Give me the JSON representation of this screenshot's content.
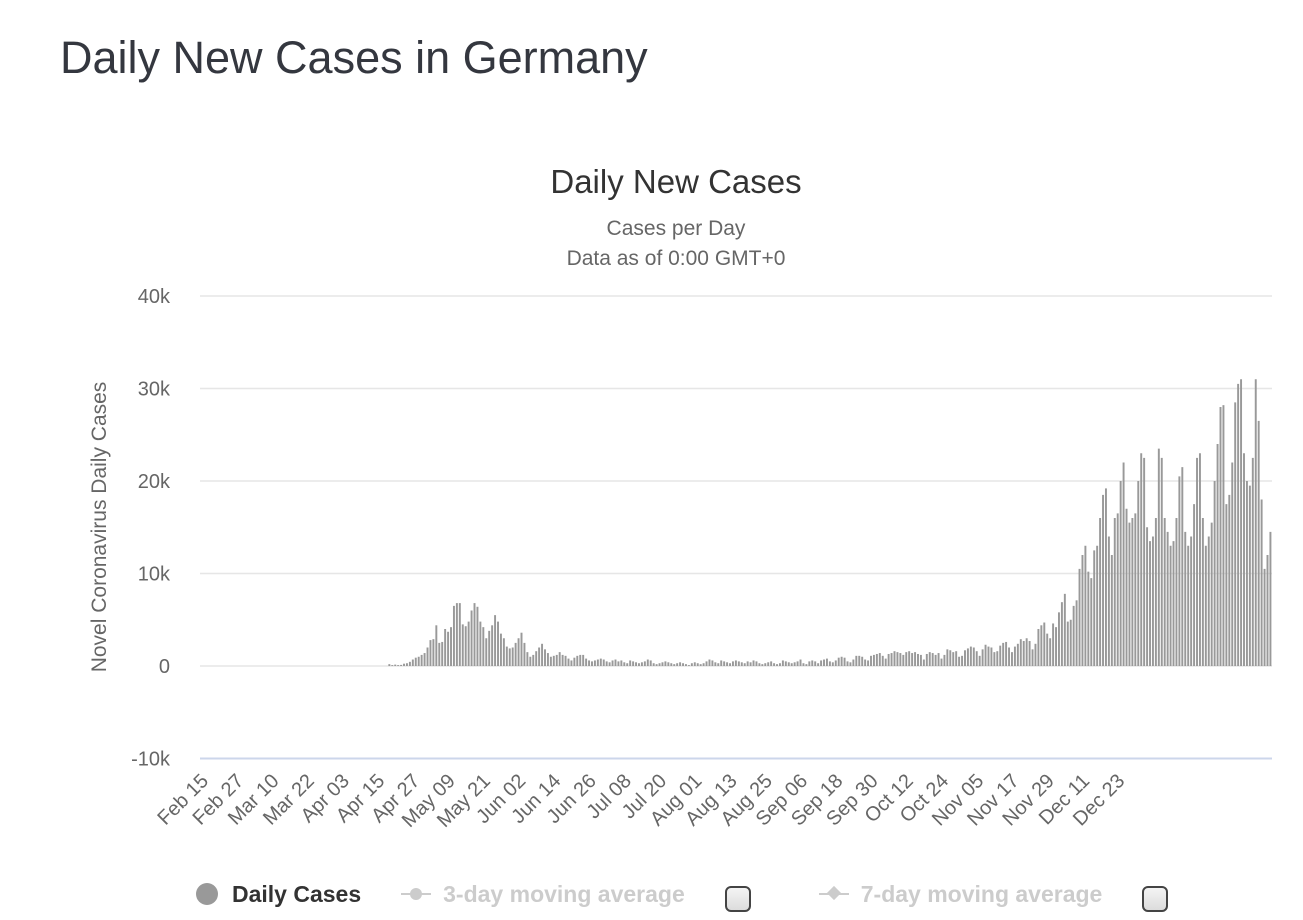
{
  "page": {
    "title": "Daily New Cases in Germany"
  },
  "legend": {
    "daily": "Daily Cases",
    "ma3": "3-day moving average",
    "ma7": "7-day moving average",
    "colors": {
      "active": "#333333",
      "inactive": "#cccccc",
      "bar": "#999999"
    }
  },
  "chart_data": {
    "type": "bar",
    "title": "Daily New Cases",
    "subtitle": "Cases per Day",
    "subtitle2": "Data as of 0:00 GMT+0",
    "ylabel": "Novel Coronavirus Daily Cases",
    "xlabel": "",
    "ylim": [
      -10000,
      40000
    ],
    "yticks": [
      40000,
      30000,
      20000,
      10000,
      0,
      -10000
    ],
    "ytick_labels": [
      "40k",
      "30k",
      "20k",
      "10k",
      "0",
      "-10k"
    ],
    "grid": true,
    "legend_position": "bottom",
    "start_date": "Feb 15",
    "xtick_labels": [
      "Feb 15",
      "Feb 27",
      "Mar 10",
      "Mar 22",
      "Apr 03",
      "Apr 15",
      "Apr 27",
      "May 09",
      "May 21",
      "Jun 02",
      "Jun 14",
      "Jun 26",
      "Jul 08",
      "Jul 20",
      "Aug 01",
      "Aug 13",
      "Aug 25",
      "Sep 06",
      "Sep 18",
      "Sep 30",
      "Oct 12",
      "Oct 24",
      "Nov 05",
      "Nov 17",
      "Nov 29",
      "Dec 11",
      "Dec 23"
    ],
    "series": [
      {
        "name": "Daily Cases",
        "color": "#999999",
        "values": [
          0,
          0,
          0,
          0,
          0,
          0,
          0,
          0,
          0,
          0,
          0,
          0,
          0,
          0,
          0,
          0,
          0,
          0,
          0,
          0,
          0,
          0,
          0,
          0,
          0,
          0,
          0,
          0,
          0,
          0,
          0,
          0,
          0,
          0,
          0,
          0,
          0,
          0,
          0,
          0,
          0,
          0,
          0,
          0,
          0,
          0,
          0,
          0,
          0,
          0,
          0,
          0,
          0,
          0,
          0,
          0,
          0,
          0,
          0,
          0,
          0,
          0,
          0,
          0,
          200,
          100,
          150,
          100,
          120,
          250,
          300,
          450,
          700,
          900,
          1000,
          1200,
          1400,
          2000,
          2800,
          2900,
          4400,
          2500,
          2600,
          4000,
          3700,
          4200,
          6500,
          6800,
          6800,
          4500,
          4300,
          4800,
          6000,
          6800,
          6400,
          4800,
          4200,
          3000,
          3800,
          4400,
          5500,
          4800,
          3500,
          3000,
          2100,
          1900,
          2000,
          2500,
          3000,
          3600,
          2500,
          1500,
          1000,
          1200,
          1600,
          2000,
          2400,
          1800,
          1400,
          1000,
          1100,
          1200,
          1500,
          1200,
          1100,
          800,
          600,
          900,
          1100,
          1200,
          1200,
          800,
          600,
          500,
          600,
          700,
          800,
          700,
          500,
          400,
          600,
          700,
          500,
          600,
          400,
          300,
          600,
          500,
          400,
          300,
          400,
          500,
          700,
          600,
          300,
          200,
          300,
          400,
          500,
          400,
          300,
          200,
          300,
          400,
          300,
          200,
          100,
          300,
          400,
          300,
          200,
          300,
          500,
          700,
          600,
          400,
          300,
          600,
          500,
          400,
          300,
          500,
          600,
          500,
          400,
          300,
          500,
          400,
          600,
          500,
          300,
          200,
          300,
          400,
          500,
          300,
          200,
          300,
          600,
          500,
          400,
          300,
          400,
          500,
          700,
          300,
          200,
          500,
          600,
          500,
          300,
          600,
          700,
          800,
          500,
          400,
          600,
          900,
          1000,
          900,
          500,
          400,
          700,
          1100,
          1100,
          1000,
          700,
          600,
          1100,
          1200,
          1300,
          1400,
          1100,
          800,
          1300,
          1400,
          1600,
          1500,
          1400,
          1200,
          1500,
          1600,
          1400,
          1500,
          1300,
          1200,
          700,
          1300,
          1500,
          1400,
          1200,
          1400,
          800,
          1200,
          1800,
          1700,
          1500,
          1600,
          1000,
          1100,
          1700,
          1900,
          2100,
          2000,
          1600,
          1100,
          1800,
          2300,
          2100,
          2000,
          1500,
          1600,
          2200,
          2500,
          2600,
          2000,
          1500,
          2100,
          2400,
          2900,
          2700,
          3000,
          2700,
          1800,
          2400,
          4000,
          4400,
          4700,
          3500,
          3000,
          4600,
          4200,
          5800,
          6900,
          7800,
          4800,
          5000,
          6500,
          7100,
          10500,
          12000,
          13000,
          10200,
          9500,
          12500,
          13000,
          16000,
          18500,
          19200,
          14000,
          12000,
          16000,
          16500,
          20000,
          22000,
          17000,
          15500,
          16000,
          16500,
          20000,
          23000,
          22500,
          15000,
          13500,
          14000,
          16000,
          23500,
          22500,
          16000,
          14500,
          13000,
          13500,
          16000,
          20500,
          21500,
          14500,
          13000,
          14000,
          17500,
          22500,
          23000,
          16000,
          13000,
          14000,
          15500,
          20000,
          24000,
          28000,
          28200,
          17500,
          18500,
          22000,
          28500,
          30500,
          31000,
          23000,
          20000,
          19500,
          22500,
          31000,
          26500,
          18000,
          10500,
          12000,
          14500
        ]
      }
    ]
  }
}
